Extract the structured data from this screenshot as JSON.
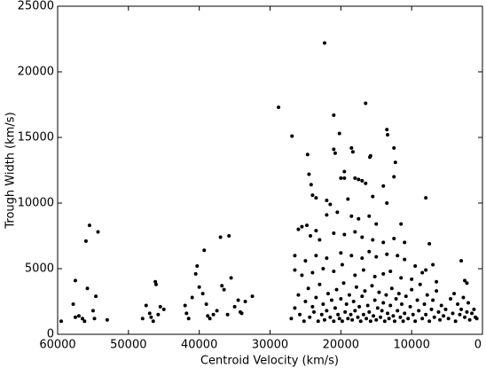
{
  "chart_data": {
    "type": "scatter",
    "x_label": "Centroid Velocity (km/s)",
    "y_label": "Trough Width (km/s)",
    "color": "#000000",
    "xlim": [
      60000,
      0
    ],
    "xticks": [
      60000,
      50000,
      40000,
      30000,
      20000,
      10000,
      0
    ],
    "ylim": [
      0,
      25000
    ],
    "yticks": [
      0,
      5000,
      10000,
      15000,
      20000,
      25000
    ],
    "x": [
      59500,
      57500,
      57000,
      57500,
      56500,
      56000,
      55800,
      55500,
      55000,
      54600,
      54300,
      54800,
      56200,
      53000,
      57800,
      48000,
      47500,
      47000,
      46500,
      46200,
      46100,
      45800,
      45500,
      45000,
      46800,
      42000,
      41800,
      41500,
      41000,
      40500,
      40300,
      40000,
      39500,
      39300,
      39000,
      38800,
      38500,
      38000,
      37500,
      37000,
      36800,
      36500,
      36000,
      35800,
      35500,
      35000,
      34500,
      34200,
      34000,
      33500,
      32500,
      28800,
      26900,
      22300,
      21000,
      20200,
      16500,
      13500,
      13400,
      15800,
      15900,
      18500,
      18300,
      21000,
      20800,
      24700,
      24500,
      12500,
      12300,
      12500,
      19500,
      20000,
      19500,
      18000,
      17500,
      17000,
      16500,
      14000,
      15500,
      24000,
      23500,
      24200,
      22000,
      21500,
      19000,
      13500,
      8000,
      22000,
      20500,
      18500,
      17500,
      16000,
      15000,
      11500,
      26000,
      25500,
      24800,
      24300,
      23500,
      23000,
      21000,
      19500,
      18000,
      17000,
      15500,
      14000,
      12500,
      11000,
      7500,
      26500,
      25000,
      23500,
      22000,
      20000,
      18500,
      17000,
      16000,
      15000,
      13500,
      12000,
      11000,
      9500,
      8000,
      7000,
      3000,
      26500,
      25500,
      24000,
      22500,
      21000,
      19800,
      18000,
      16800,
      15200,
      14000,
      13000,
      11500,
      10000,
      8500,
      6500,
      2500,
      2200,
      27000,
      26500,
      26000,
      25800,
      25200,
      25000,
      24600,
      24400,
      24000,
      23800,
      23500,
      23200,
      23000,
      22700,
      22500,
      22300,
      22000,
      21800,
      21500,
      21300,
      21000,
      20800,
      20600,
      20400,
      20200,
      20000,
      19800,
      19600,
      19400,
      19200,
      19000,
      18800,
      18600,
      18400,
      18200,
      18000,
      17800,
      17600,
      17400,
      17200,
      17000,
      16800,
      16600,
      16400,
      16200,
      16000,
      15800,
      15600,
      15400,
      15200,
      15000,
      14800,
      14600,
      14400,
      14200,
      14000,
      13800,
      13600,
      13400,
      13200,
      13000,
      12800,
      12600,
      12400,
      12200,
      12000,
      11800,
      11600,
      11400,
      11200,
      11000,
      10800,
      10500,
      10200,
      10000,
      9800,
      9500,
      9200,
      9000,
      8800,
      8500,
      8200,
      8000,
      7800,
      7500,
      7200,
      7000,
      6800,
      6500,
      6200,
      6000,
      5800,
      5500,
      5200,
      4800,
      4500,
      4200,
      4000,
      3800,
      3500,
      3200,
      3000,
      2700,
      2500,
      2200,
      2000,
      1800,
      1500,
      1200,
      1000,
      800
    ],
    "values": [
      1000,
      4100,
      1400,
      1300,
      1200,
      7100,
      3500,
      8300,
      1800,
      2900,
      7800,
      1200,
      1000,
      1100,
      2300,
      1200,
      2200,
      1600,
      1000,
      4000,
      3800,
      1500,
      2100,
      1900,
      1300,
      2200,
      1600,
      1200,
      2800,
      4600,
      5200,
      3600,
      3100,
      6400,
      2300,
      1400,
      1200,
      1500,
      1800,
      7400,
      3700,
      3400,
      1500,
      7500,
      4300,
      2100,
      2600,
      1700,
      1600,
      2500,
      2900,
      17300,
      15100,
      22200,
      16700,
      15300,
      17600,
      15600,
      15200,
      13600,
      13500,
      14200,
      13900,
      14100,
      13800,
      13700,
      12200,
      14200,
      13100,
      12000,
      12400,
      11900,
      11900,
      11900,
      11800,
      11700,
      11500,
      11300,
      10500,
      10600,
      10400,
      11400,
      10200,
      9900,
      10300,
      10000,
      10400,
      9100,
      9300,
      9000,
      8800,
      9000,
      8400,
      8400,
      8000,
      8200,
      8300,
      7500,
      7900,
      7200,
      7700,
      7600,
      7800,
      7400,
      7200,
      7000,
      7300,
      7000,
      6900,
      6000,
      5600,
      6000,
      5800,
      6200,
      6000,
      5800,
      6300,
      5900,
      6100,
      6000,
      5700,
      5200,
      4900,
      5300,
      5600,
      4900,
      4500,
      4700,
      5000,
      4800,
      5300,
      4500,
      4900,
      4400,
      4600,
      4800,
      4300,
      4200,
      4700,
      4000,
      4100,
      3900,
      1200,
      2000,
      3000,
      1500,
      1000,
      2500,
      3500,
      1300,
      2100,
      1700,
      2800,
      1000,
      3800,
      1500,
      2300,
      1100,
      1800,
      3100,
      1300,
      2600,
      1000,
      2000,
      3400,
      1500,
      1200,
      2700,
      1000,
      3900,
      1700,
      2300,
      1200,
      3000,
      1500,
      1100,
      2500,
      1800,
      3600,
      1300,
      2100,
      1000,
      2900,
      1500,
      3300,
      1200,
      2200,
      1700,
      1000,
      3700,
      1400,
      2600,
      1100,
      2000,
      3200,
      1300,
      1800,
      2400,
      1000,
      3000,
      1600,
      1200,
      2200,
      3500,
      1400,
      1000,
      2700,
      1800,
      3100,
      1300,
      2300,
      1000,
      1600,
      2900,
      1200,
      2100,
      3400,
      1500,
      1000,
      2600,
      1800,
      3800,
      1200,
      2300,
      1500,
      3000,
      1000,
      1900,
      2600,
      1300,
      3300,
      1700,
      1100,
      2200,
      1400,
      1900,
      1200,
      2700,
      1600,
      3100,
      1000,
      2300,
      1500,
      1900,
      2800,
      1300,
      1700,
      2400,
      1100,
      1600,
      1900,
      1300,
      1200
    ]
  }
}
